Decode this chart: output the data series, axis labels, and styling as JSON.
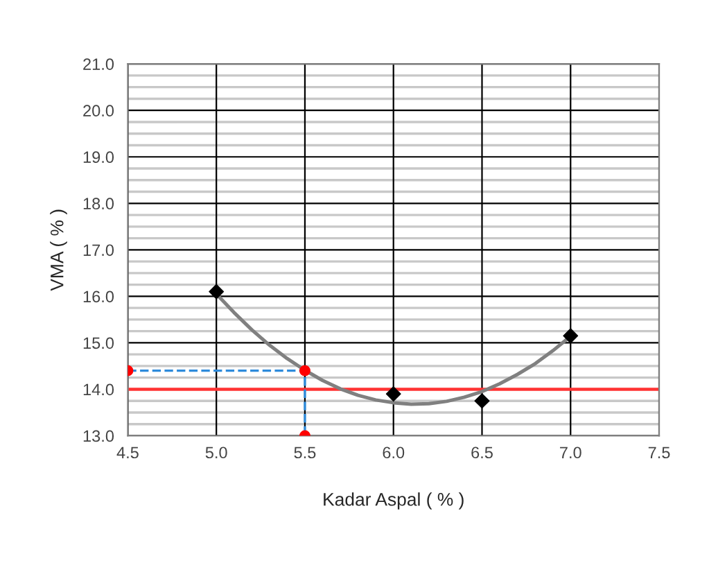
{
  "chart_data": {
    "type": "scatter",
    "xlabel": "Kadar Aspal ( % )",
    "ylabel": "VMA ( % )",
    "xlim": [
      4.5,
      7.5
    ],
    "ylim": [
      13,
      21
    ],
    "xticks": [
      {
        "value": 4.5,
        "label": "4.5"
      },
      {
        "value": 5,
        "label": "5.0"
      },
      {
        "value": 5.5,
        "label": "5.5"
      },
      {
        "value": 6,
        "label": "6.0"
      },
      {
        "value": 6.5,
        "label": "6.5"
      },
      {
        "value": 7,
        "label": "7.0"
      },
      {
        "value": 7.5,
        "label": "7.5"
      }
    ],
    "yticks": [
      {
        "value": 13,
        "label": "13.0"
      },
      {
        "value": 13.25,
        "label": null
      },
      {
        "value": 13.5,
        "label": null
      },
      {
        "value": 13.75,
        "label": null
      },
      {
        "value": 14,
        "label": "14.0"
      },
      {
        "value": 14.25,
        "label": null
      },
      {
        "value": 14.5,
        "label": null
      },
      {
        "value": 14.75,
        "label": null
      },
      {
        "value": 15,
        "label": "15.0"
      },
      {
        "value": 15.25,
        "label": null
      },
      {
        "value": 15.5,
        "label": null
      },
      {
        "value": 15.75,
        "label": null
      },
      {
        "value": 16,
        "label": "16.0"
      },
      {
        "value": 16.25,
        "label": null
      },
      {
        "value": 16.5,
        "label": null
      },
      {
        "value": 16.75,
        "label": null
      },
      {
        "value": 17,
        "label": "17.0"
      },
      {
        "value": 17.25,
        "label": null
      },
      {
        "value": 17.5,
        "label": null
      },
      {
        "value": 17.75,
        "label": null
      },
      {
        "value": 18,
        "label": "18.0"
      },
      {
        "value": 18.25,
        "label": null
      },
      {
        "value": 18.5,
        "label": null
      },
      {
        "value": 18.75,
        "label": null
      },
      {
        "value": 19,
        "label": "19.0"
      },
      {
        "value": 19.25,
        "label": null
      },
      {
        "value": 19.5,
        "label": null
      },
      {
        "value": 19.75,
        "label": null
      },
      {
        "value": 20,
        "label": "20.0"
      },
      {
        "value": 20.25,
        "label": null
      },
      {
        "value": 20.5,
        "label": null
      },
      {
        "value": 20.75,
        "label": null
      },
      {
        "value": 21,
        "label": "21.0"
      }
    ],
    "grid": true,
    "ref_lines": [
      {
        "axis": "y",
        "value": 14,
        "color": "#ff3333"
      }
    ],
    "series": [
      {
        "type": "line",
        "color": "#808080",
        "marker": "none",
        "line_style": "solid",
        "x": [
          5.0,
          5.1,
          5.2,
          5.3,
          5.4,
          5.5,
          5.6,
          5.7,
          5.8,
          5.9,
          6.0,
          6.1,
          6.2,
          6.3,
          6.4,
          6.5,
          6.6,
          6.7,
          6.8,
          6.9,
          7.0
        ],
        "values": [
          16.05,
          15.65,
          15.28,
          14.95,
          14.66,
          14.41,
          14.19,
          14.01,
          13.87,
          13.77,
          13.71,
          13.68,
          13.69,
          13.74,
          13.83,
          13.95,
          14.12,
          14.32,
          14.55,
          14.83,
          15.14
        ]
      },
      {
        "type": "line",
        "color": "#2e8bdb",
        "marker": "none",
        "line_style": "dashed",
        "x": [
          4.5,
          5.5,
          5.5
        ],
        "values": [
          14.4,
          14.4,
          13.0
        ]
      },
      {
        "type": "scatter",
        "color": "#000000",
        "marker": "diamond",
        "x": [
          5.0,
          6.0,
          6.5,
          7.0
        ],
        "values": [
          16.1,
          13.9,
          13.75,
          15.15
        ]
      },
      {
        "type": "scatter",
        "color": "#ff0000",
        "marker": "circle",
        "x": [
          4.5,
          5.5,
          5.5
        ],
        "values": [
          14.4,
          14.4,
          13.0
        ]
      }
    ]
  }
}
